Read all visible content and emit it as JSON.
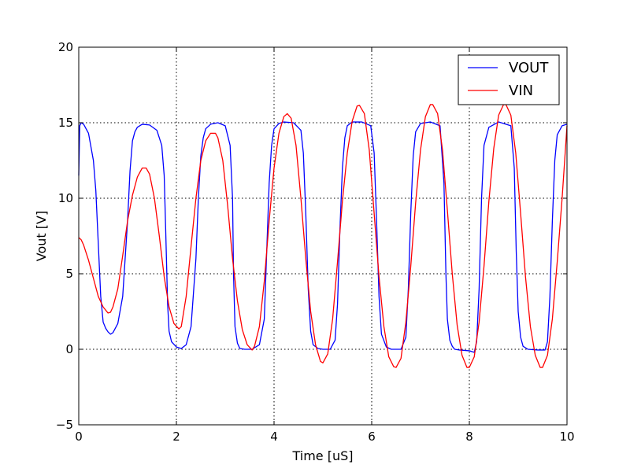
{
  "chart_data": {
    "type": "line",
    "title": "",
    "xlabel": "Time [uS]",
    "ylabel": "Vout [V]",
    "xlim": [
      0,
      10
    ],
    "ylim": [
      -5,
      20
    ],
    "xticks": [
      0,
      2,
      4,
      6,
      8,
      10
    ],
    "yticks": [
      -5,
      0,
      5,
      10,
      15,
      20
    ],
    "xtick_labels": [
      "0",
      "2",
      "4",
      "6",
      "8",
      "10"
    ],
    "ytick_labels": [
      "−5",
      "0",
      "5",
      "10",
      "15",
      "20"
    ],
    "grid": true,
    "legend_position": "upper right",
    "series": [
      {
        "name": "VOUT",
        "color": "#0000ff",
        "x": [
          0,
          0.02,
          0.05,
          0.1,
          0.2,
          0.3,
          0.35,
          0.4,
          0.45,
          0.5,
          0.55,
          0.6,
          0.65,
          0.7,
          0.8,
          0.9,
          1.0,
          1.05,
          1.1,
          1.15,
          1.2,
          1.3,
          1.45,
          1.6,
          1.7,
          1.75,
          1.78,
          1.82,
          1.85,
          1.9,
          2.0,
          2.1,
          2.2,
          2.3,
          2.4,
          2.45,
          2.5,
          2.55,
          2.6,
          2.7,
          2.85,
          3.0,
          3.1,
          3.15,
          3.17,
          3.2,
          3.25,
          3.3,
          3.4,
          3.55,
          3.7,
          3.8,
          3.85,
          3.9,
          3.95,
          4.0,
          4.1,
          4.2,
          4.4,
          4.55,
          4.6,
          4.65,
          4.7,
          4.75,
          4.8,
          4.9,
          5.0,
          5.15,
          5.25,
          5.3,
          5.35,
          5.4,
          5.45,
          5.5,
          5.6,
          5.8,
          5.98,
          6.05,
          6.1,
          6.15,
          6.2,
          6.3,
          6.4,
          6.6,
          6.7,
          6.75,
          6.8,
          6.85,
          6.9,
          7.0,
          7.2,
          7.4,
          7.48,
          7.52,
          7.55,
          7.6,
          7.65,
          7.7,
          7.8,
          8.0,
          8.1,
          8.15,
          8.2,
          8.25,
          8.3,
          8.4,
          8.6,
          8.85,
          8.92,
          8.96,
          9.0,
          9.05,
          9.1,
          9.2,
          9.4,
          9.55,
          9.6,
          9.65,
          9.7,
          9.75,
          9.8,
          9.9,
          10.0
        ],
        "values": [
          11.5,
          14.8,
          15.0,
          14.9,
          14.3,
          12.5,
          10.5,
          7.0,
          3.5,
          1.8,
          1.4,
          1.15,
          1.0,
          1.1,
          1.7,
          3.5,
          8.5,
          11.8,
          13.8,
          14.4,
          14.7,
          14.9,
          14.85,
          14.5,
          13.5,
          11.5,
          8.0,
          3.0,
          1.2,
          0.5,
          0.15,
          0.05,
          0.3,
          1.5,
          6.0,
          10.0,
          12.8,
          14.0,
          14.6,
          14.9,
          15.0,
          14.8,
          13.5,
          10.0,
          5.0,
          1.5,
          0.4,
          0.05,
          0.0,
          0.0,
          0.3,
          2.0,
          6.5,
          11.0,
          13.5,
          14.6,
          14.95,
          15.05,
          15.0,
          14.5,
          13.0,
          9.0,
          4.0,
          1.2,
          0.3,
          0.05,
          0.0,
          0.0,
          0.6,
          3.0,
          8.0,
          12.0,
          14.0,
          14.8,
          15.05,
          15.05,
          14.8,
          13.0,
          8.5,
          3.5,
          1.0,
          0.15,
          0.0,
          0.0,
          0.8,
          4.0,
          9.0,
          12.8,
          14.4,
          14.95,
          15.05,
          14.8,
          11.0,
          5.0,
          2.0,
          0.6,
          0.2,
          0.0,
          -0.05,
          -0.1,
          -0.2,
          0.5,
          4.0,
          10.0,
          13.5,
          14.7,
          15.05,
          14.8,
          12.0,
          6.5,
          2.5,
          0.8,
          0.2,
          0.0,
          -0.05,
          -0.05,
          0.5,
          3.5,
          8.5,
          12.5,
          14.2,
          14.8,
          14.9
        ]
      },
      {
        "name": "VIN",
        "color": "#ff0000",
        "x": [
          0,
          0.05,
          0.1,
          0.2,
          0.3,
          0.4,
          0.5,
          0.6,
          0.65,
          0.7,
          0.8,
          0.9,
          1.0,
          1.1,
          1.2,
          1.3,
          1.38,
          1.45,
          1.55,
          1.65,
          1.75,
          1.85,
          1.95,
          2.05,
          2.1,
          2.2,
          2.3,
          2.4,
          2.5,
          2.6,
          2.7,
          2.8,
          2.85,
          2.95,
          3.05,
          3.15,
          3.25,
          3.35,
          3.45,
          3.55,
          3.6,
          3.7,
          3.8,
          3.9,
          4.0,
          4.1,
          4.2,
          4.27,
          4.35,
          4.45,
          4.55,
          4.65,
          4.75,
          4.85,
          4.95,
          5.0,
          5.1,
          5.2,
          5.3,
          5.4,
          5.5,
          5.6,
          5.7,
          5.75,
          5.85,
          5.95,
          6.05,
          6.15,
          6.25,
          6.35,
          6.45,
          6.5,
          6.6,
          6.7,
          6.8,
          6.9,
          7.0,
          7.1,
          7.2,
          7.25,
          7.35,
          7.45,
          7.55,
          7.65,
          7.75,
          7.85,
          7.95,
          8.0,
          8.1,
          8.2,
          8.3,
          8.4,
          8.5,
          8.6,
          8.7,
          8.75,
          8.85,
          8.95,
          9.05,
          9.15,
          9.25,
          9.35,
          9.45,
          9.5,
          9.6,
          9.7,
          9.8,
          9.9,
          10.0
        ],
        "values": [
          7.4,
          7.25,
          6.9,
          5.9,
          4.7,
          3.5,
          2.8,
          2.4,
          2.45,
          2.8,
          4.0,
          6.2,
          8.5,
          10.2,
          11.4,
          12.0,
          12.0,
          11.6,
          10.0,
          7.5,
          4.8,
          2.8,
          1.7,
          1.35,
          1.5,
          3.5,
          6.8,
          10.0,
          12.5,
          13.8,
          14.3,
          14.3,
          14.0,
          12.5,
          9.5,
          6.0,
          3.2,
          1.3,
          0.3,
          -0.05,
          0.2,
          1.5,
          4.5,
          8.5,
          12.0,
          14.3,
          15.4,
          15.6,
          15.3,
          13.5,
          10.0,
          6.0,
          2.5,
          0.3,
          -0.8,
          -0.9,
          -0.3,
          2.0,
          5.8,
          9.8,
          13.0,
          15.1,
          16.1,
          16.15,
          15.6,
          13.2,
          9.0,
          4.8,
          1.5,
          -0.5,
          -1.15,
          -1.2,
          -0.6,
          1.8,
          5.5,
          9.7,
          13.2,
          15.4,
          16.2,
          16.2,
          15.6,
          13.2,
          9.2,
          5.0,
          1.6,
          -0.4,
          -1.2,
          -1.2,
          -0.5,
          1.8,
          5.5,
          9.8,
          13.3,
          15.5,
          16.2,
          16.2,
          15.5,
          13.0,
          9.0,
          4.8,
          1.5,
          -0.4,
          -1.2,
          -1.2,
          -0.4,
          2.0,
          5.8,
          10.0,
          14.8
        ]
      }
    ]
  }
}
